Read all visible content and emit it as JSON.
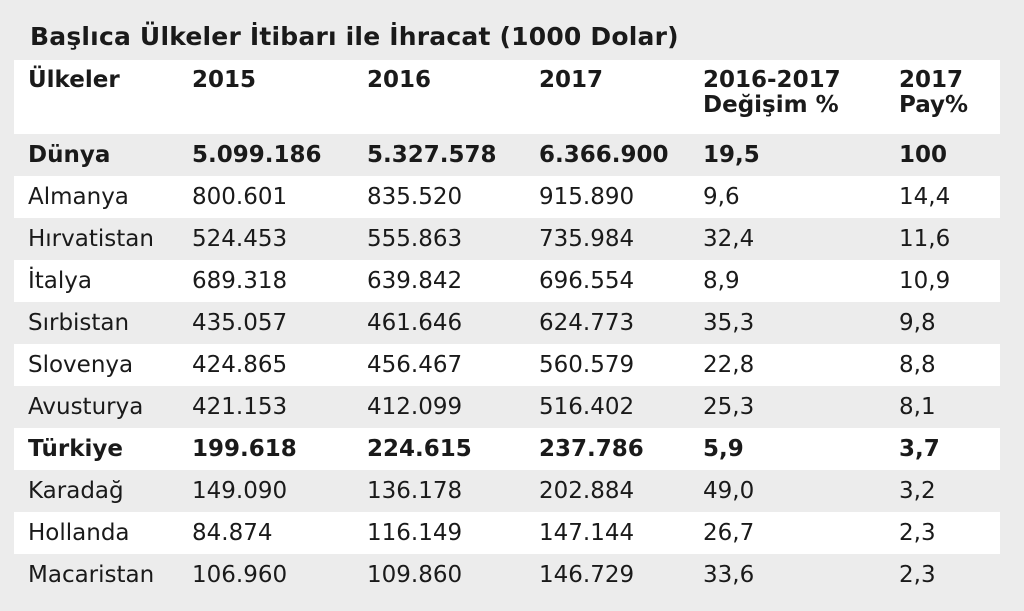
{
  "title": "Başlıca Ülkeler İtibarı ile İhracat (1000 Dolar)",
  "headers": {
    "country": "Ülkeler",
    "y2015": "2015",
    "y2016": "2016",
    "y2017": "2017",
    "change_line1": "2016-2017",
    "change_line2": "Değişim %",
    "share_line1": "2017",
    "share_line2": "Pay%"
  },
  "rows": [
    {
      "country": "Dünya",
      "y2015": "5.099.186",
      "y2016": "5.327.578",
      "y2017": "6.366.900",
      "change": "19,5",
      "share": "100"
    },
    {
      "country": "Almanya",
      "y2015": "800.601",
      "y2016": "835.520",
      "y2017": "915.890",
      "change": "9,6",
      "share": "14,4"
    },
    {
      "country": "Hırvatistan",
      "y2015": "524.453",
      "y2016": "555.863",
      "y2017": "735.984",
      "change": "32,4",
      "share": "11,6"
    },
    {
      "country": "İtalya",
      "y2015": "689.318",
      "y2016": "639.842",
      "y2017": "696.554",
      "change": "8,9",
      "share": "10,9"
    },
    {
      "country": "Sırbistan",
      "y2015": "435.057",
      "y2016": "461.646",
      "y2017": "624.773",
      "change": "35,3",
      "share": "9,8"
    },
    {
      "country": "Slovenya",
      "y2015": "424.865",
      "y2016": "456.467",
      "y2017": "560.579",
      "change": "22,8",
      "share": "8,8"
    },
    {
      "country": "Avusturya",
      "y2015": "421.153",
      "y2016": "412.099",
      "y2017": "516.402",
      "change": "25,3",
      "share": "8,1"
    },
    {
      "country": "Türkiye",
      "y2015": "199.618",
      "y2016": "224.615",
      "y2017": "237.786",
      "change": "5,9",
      "share": "3,7"
    },
    {
      "country": "Karadağ",
      "y2015": "149.090",
      "y2016": "136.178",
      "y2017": "202.884",
      "change": "49,0",
      "share": "3,2"
    },
    {
      "country": "Hollanda",
      "y2015": "84.874",
      "y2016": "116.149",
      "y2017": "147.144",
      "change": "26,7",
      "share": "2,3"
    },
    {
      "country": "Macaristan",
      "y2015": "106.960",
      "y2016": "109.860",
      "y2017": "146.729",
      "change": "33,6",
      "share": "2,3"
    }
  ]
}
